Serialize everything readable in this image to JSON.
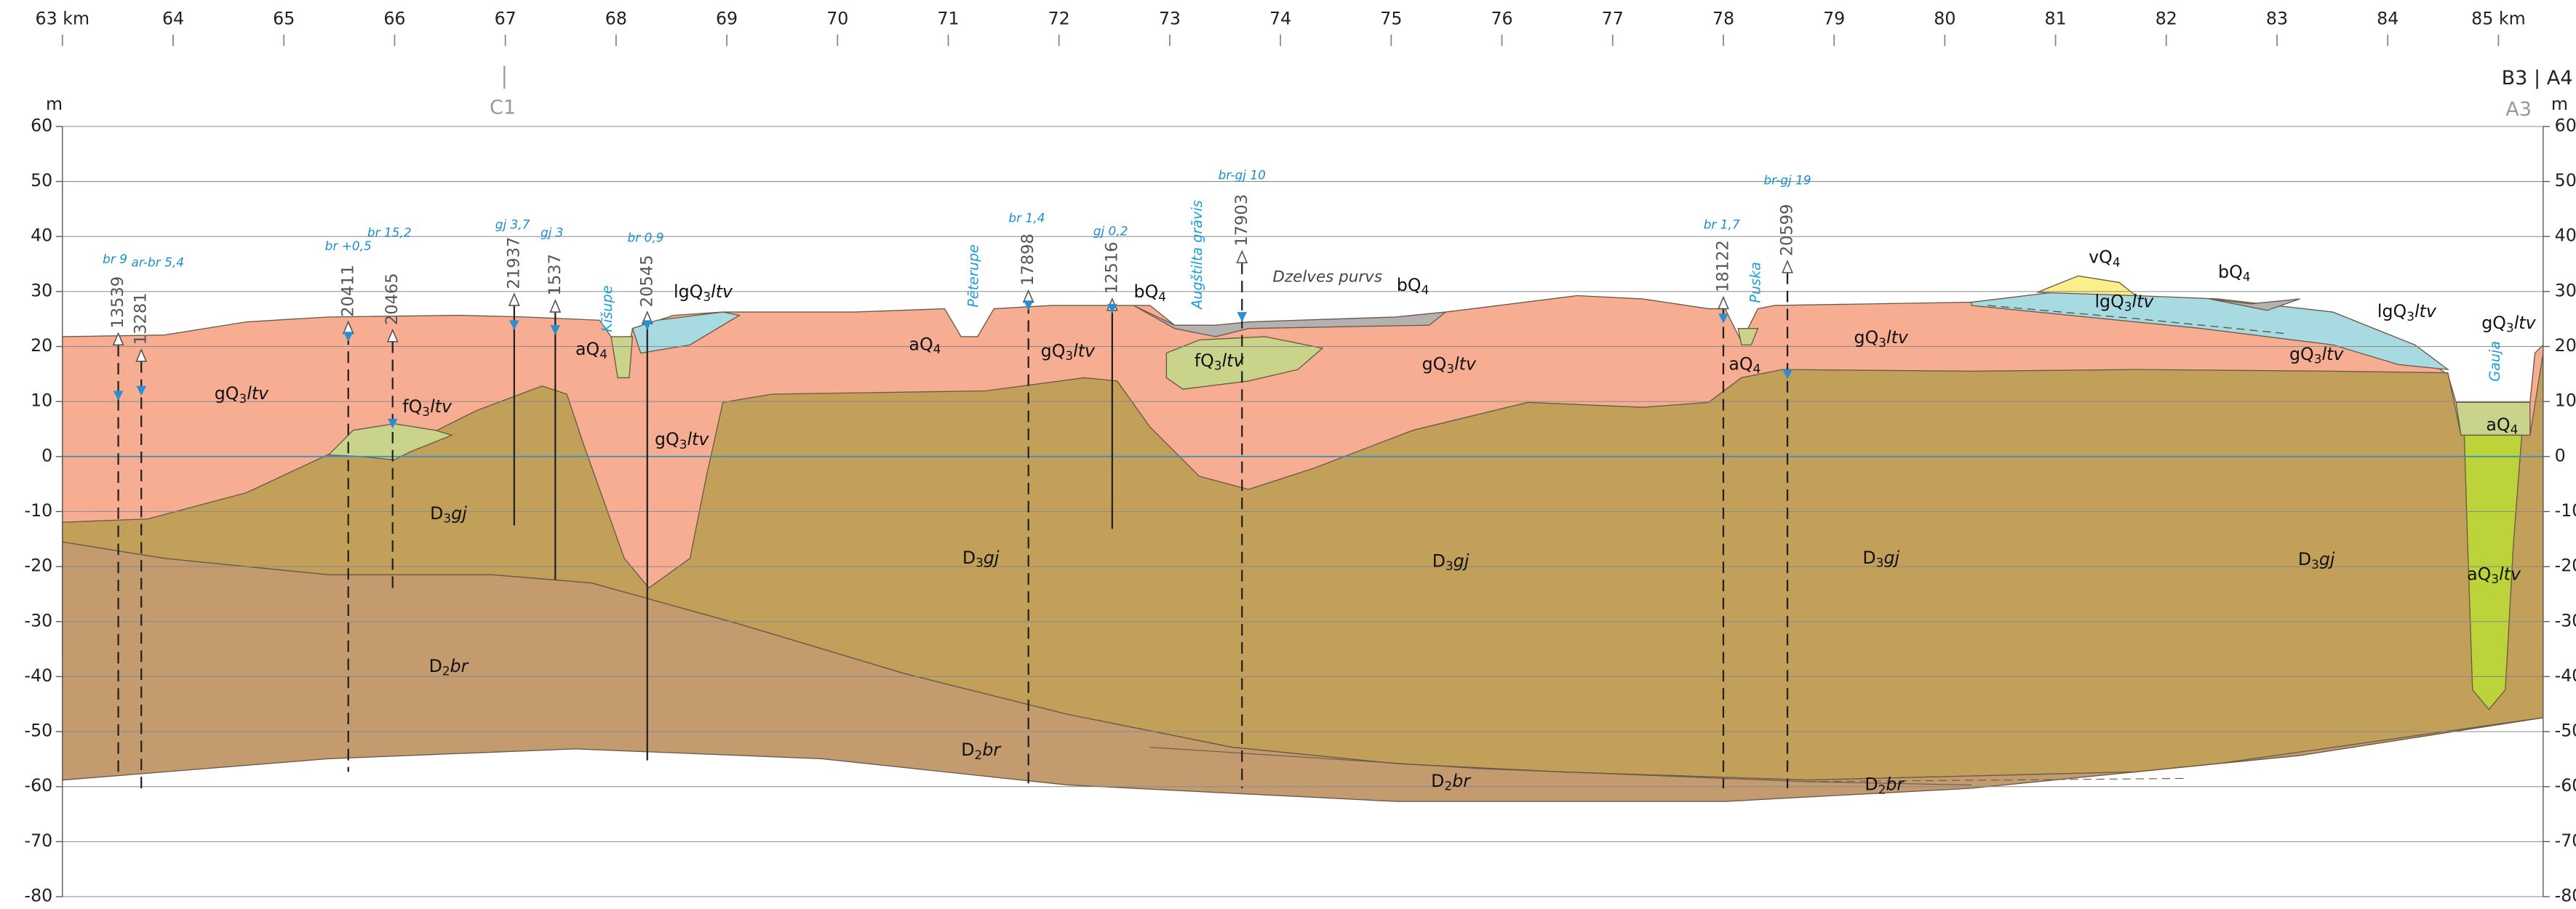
{
  "x_axis": {
    "ticks": [
      {
        "value": 63,
        "label": "63 km"
      },
      64,
      65,
      66,
      67,
      68,
      69,
      70,
      71,
      72,
      73,
      74,
      75,
      76,
      77,
      78,
      79,
      80,
      81,
      82,
      83,
      84,
      {
        "value": 85,
        "label": "85 km"
      }
    ]
  },
  "y_axis": {
    "unit": "m",
    "ticks": [
      60,
      50,
      40,
      30,
      20,
      10,
      0,
      -10,
      -20,
      -30,
      -40,
      -50,
      -60,
      -70,
      -80
    ]
  },
  "section_marks": {
    "left": "C1",
    "right_top": "B3 | A4",
    "right_bottom": "A3"
  },
  "boreholes": [
    {
      "id": "13539",
      "note": "br 9"
    },
    {
      "id": "13281",
      "note": "ar-br 5,4"
    },
    {
      "id": "20411",
      "note": "br +0,5"
    },
    {
      "id": "20465",
      "note": "br 15,2"
    },
    {
      "id": "21937",
      "note": "gj 3,7"
    },
    {
      "id": "1537",
      "note": "gj 3"
    },
    {
      "id": "20545",
      "note": "br 0,9"
    },
    {
      "id": "17898",
      "note": "br 1,4"
    },
    {
      "id": "12516",
      "note": "gj 0,2"
    },
    {
      "id": "17903",
      "note": "br-gj 10"
    },
    {
      "id": "18122",
      "note": "br 1,7"
    },
    {
      "id": "20599",
      "note": "br-gj 19"
    }
  ],
  "places": [
    "Kīšupe",
    "Pēterupe",
    "Augštilta grāvis",
    "Dzelves purvs",
    "Puska",
    "Gauja"
  ],
  "layers": [
    [
      "gQ",
      "3",
      "ltv"
    ],
    [
      "fQ",
      "3",
      "ltv"
    ],
    [
      "D",
      "3",
      "gj"
    ],
    [
      "D",
      "2",
      "br"
    ],
    [
      "aQ",
      "4"
    ],
    [
      "lgQ",
      "3",
      "ltv"
    ],
    [
      "gQ",
      "3",
      "ltv"
    ],
    [
      "aQ",
      "4"
    ],
    [
      "D",
      "3",
      "gj"
    ],
    [
      "gQ",
      "3",
      "ltv"
    ],
    [
      "bQ",
      "4"
    ],
    [
      "fQ",
      "3",
      "ltv"
    ],
    [
      "bQ",
      "4"
    ],
    [
      "gQ",
      "3",
      "ltv"
    ],
    [
      "D",
      "3",
      "gj"
    ],
    [
      "D",
      "2",
      "br"
    ],
    [
      "D",
      "2",
      "br"
    ],
    [
      "aQ",
      "4"
    ],
    [
      "gQ",
      "3",
      "ltv"
    ],
    [
      "D",
      "3",
      "gj"
    ],
    [
      "D",
      "2",
      "br"
    ],
    [
      "vQ",
      "4"
    ],
    [
      "bQ",
      "4"
    ],
    [
      "lgQ",
      "3",
      "ltv"
    ],
    [
      "lgQ",
      "3",
      "ltv"
    ],
    [
      "gQ",
      "3",
      "ltv"
    ],
    [
      "D",
      "3",
      "gj"
    ],
    [
      "gQ",
      "3",
      "ltv"
    ],
    [
      "aQ",
      "4"
    ],
    [
      "aQ",
      "3",
      "ltv"
    ]
  ]
}
